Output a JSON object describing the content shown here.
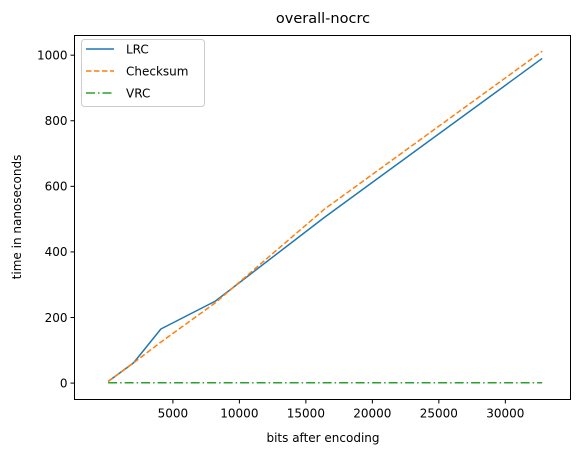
{
  "chart_data": {
    "type": "line",
    "title": "overall-nocrc",
    "xlabel": "bits after encoding",
    "ylabel": "time in nanoseconds",
    "xlim": [
      -2400,
      34900
    ],
    "ylim": [
      -50,
      1060
    ],
    "xticks": [
      5000,
      10000,
      15000,
      20000,
      25000,
      30000
    ],
    "yticks": [
      0,
      200,
      400,
      600,
      800,
      1000
    ],
    "legend_position": "top-left",
    "grid": false,
    "series": [
      {
        "name": "LRC",
        "color": "#1f77b4",
        "style": "solid",
        "x": [
          128,
          2048,
          4096,
          8192,
          16384,
          32768
        ],
        "y": [
          5,
          62,
          165,
          250,
          505,
          990
        ]
      },
      {
        "name": "Checksum",
        "color": "#ff7f0e",
        "style": "dashed",
        "x": [
          128,
          2048,
          4096,
          8192,
          16384,
          32768
        ],
        "y": [
          5,
          62,
          125,
          245,
          530,
          1012
        ]
      },
      {
        "name": "VRC",
        "color": "#2ca02c",
        "style": "dashdot",
        "x": [
          128,
          2048,
          4096,
          8192,
          16384,
          32768
        ],
        "y": [
          1,
          1,
          1,
          1,
          1,
          1
        ]
      }
    ]
  }
}
